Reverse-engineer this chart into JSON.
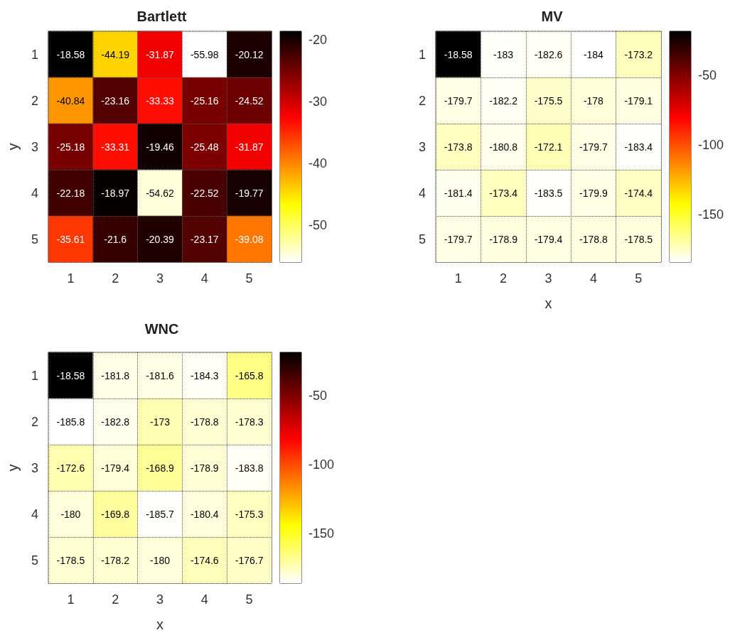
{
  "chart_data": [
    {
      "type": "heatmap",
      "title": "Bartlett",
      "ylabel": "y",
      "categories": [
        "1",
        "2",
        "3",
        "4",
        "5"
      ],
      "y_categories": [
        "1",
        "2",
        "3",
        "4",
        "5"
      ],
      "cells": [
        [
          -18.58,
          -44.19,
          -31.87,
          -55.98,
          -20.12
        ],
        [
          -40.84,
          -23.16,
          -33.33,
          -25.16,
          -24.52
        ],
        [
          -25.18,
          -33.31,
          -19.46,
          -25.48,
          -31.87
        ],
        [
          -22.18,
          -18.97,
          -54.62,
          -22.52,
          -19.77
        ],
        [
          -35.61,
          -21.6,
          -20.39,
          -23.17,
          -39.08
        ]
      ],
      "clim": [
        -55.98,
        -18.58
      ],
      "cticks": [
        -20,
        -30,
        -40,
        -50
      ],
      "grid": true,
      "data_labels": true
    },
    {
      "type": "heatmap",
      "title": "MV",
      "xlabel": "x",
      "categories": [
        "1",
        "2",
        "3",
        "4",
        "5"
      ],
      "y_categories": [
        "1",
        "2",
        "3",
        "4",
        "5"
      ],
      "cells": [
        [
          -18.58,
          -183,
          -182.6,
          -184,
          -173.2
        ],
        [
          -179.7,
          -182.2,
          -175.5,
          -178,
          -179.1
        ],
        [
          -173.8,
          -180.8,
          -172.1,
          -179.7,
          -183.4
        ],
        [
          -181.4,
          -173.4,
          -183.5,
          -179.9,
          -174.4
        ],
        [
          -179.7,
          -178.9,
          -179.4,
          -178.8,
          -178.5
        ]
      ],
      "clim": [
        -184,
        -18.58
      ],
      "cticks": [
        -50,
        -100,
        -150
      ],
      "grid": true,
      "data_labels": true
    },
    {
      "type": "heatmap",
      "title": "WNC",
      "xlabel": "x",
      "ylabel": "y",
      "categories": [
        "1",
        "2",
        "3",
        "4",
        "5"
      ],
      "y_categories": [
        "1",
        "2",
        "3",
        "4",
        "5"
      ],
      "cells": [
        [
          -18.58,
          -181.8,
          -181.6,
          -184.3,
          -165.8
        ],
        [
          -185.8,
          -182.8,
          -173,
          -178.8,
          -178.3
        ],
        [
          -172.6,
          -179.4,
          -168.9,
          -178.9,
          -183.8
        ],
        [
          -180,
          -169.8,
          -185.7,
          -180.4,
          -175.3
        ],
        [
          -178.5,
          -178.2,
          -180,
          -174.6,
          -176.7
        ]
      ],
      "clim": [
        -185.8,
        -18.58
      ],
      "cticks": [
        -50,
        -100,
        -150
      ],
      "grid": true,
      "data_labels": true
    }
  ]
}
